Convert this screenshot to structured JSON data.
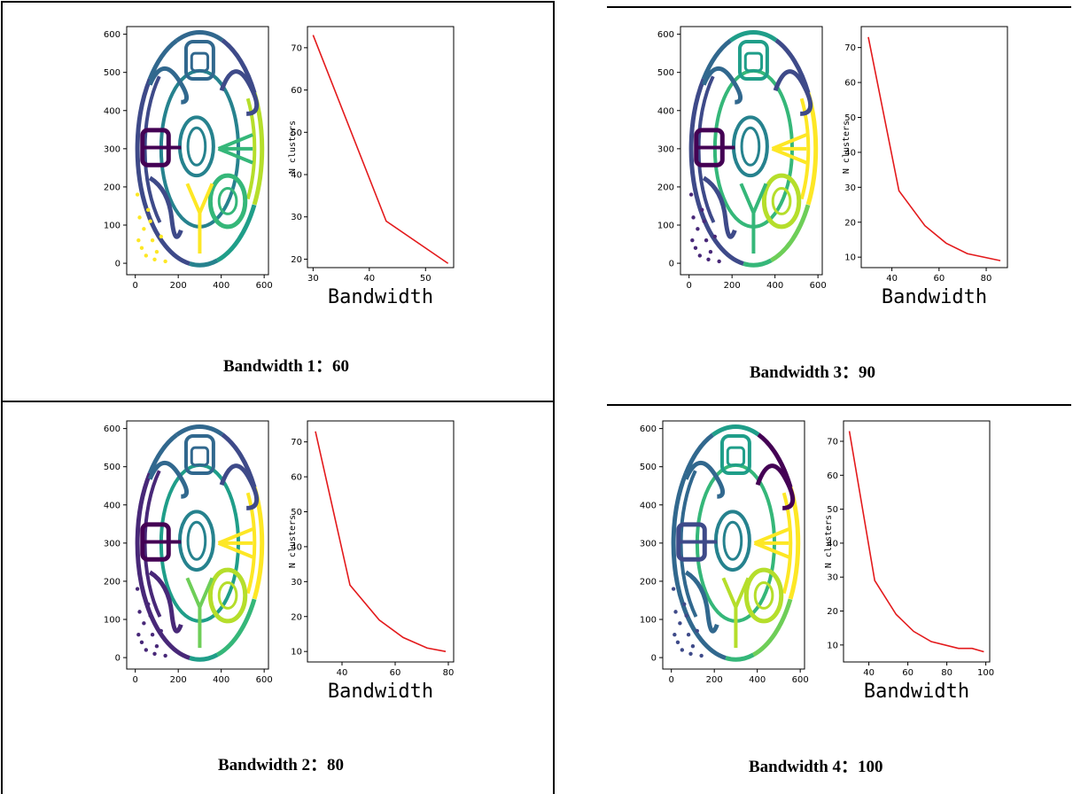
{
  "panels": [
    {
      "caption": "Bandwidth 1：60",
      "clusters": "c1",
      "chart": {
        "x": [
          30,
          43,
          54
        ],
        "y": [
          73,
          29,
          19
        ],
        "xlim": [
          29,
          55
        ],
        "xticks": [
          30,
          40,
          50
        ],
        "ylim": [
          18,
          75
        ],
        "yticks": [
          20,
          30,
          40,
          50,
          60,
          70
        ],
        "ylabel": "N clusters",
        "xlabel": "Bandwidth"
      }
    },
    {
      "caption": "Bandwidth 3：90",
      "clusters": "c3",
      "chart": {
        "x": [
          30,
          43,
          54,
          63,
          72,
          86
        ],
        "y": [
          73,
          29,
          19,
          14,
          11,
          9
        ],
        "xlim": [
          27,
          89
        ],
        "xticks": [
          40,
          60,
          80
        ],
        "ylim": [
          7,
          76
        ],
        "yticks": [
          10,
          20,
          30,
          40,
          50,
          60,
          70
        ],
        "ylabel": "N clusters",
        "xlabel": "Bandwidth"
      }
    },
    {
      "caption": "Bandwidth 2：80",
      "clusters": "c2",
      "chart": {
        "x": [
          30,
          43,
          54,
          63,
          72,
          79
        ],
        "y": [
          73,
          29,
          19,
          14,
          11,
          10
        ],
        "xlim": [
          27,
          82
        ],
        "xticks": [
          40,
          60,
          80
        ],
        "ylim": [
          7,
          76
        ],
        "yticks": [
          10,
          20,
          30,
          40,
          50,
          60,
          70
        ],
        "ylabel": "N clusters",
        "xlabel": "Bandwidth"
      }
    },
    {
      "caption": "Bandwidth 4：100",
      "clusters": "c4",
      "chart": {
        "x": [
          30,
          43,
          54,
          63,
          72,
          86,
          93,
          99
        ],
        "y": [
          73,
          29,
          19,
          14,
          11,
          9,
          9,
          8
        ],
        "xlim": [
          27,
          102
        ],
        "xticks": [
          40,
          60,
          80,
          100
        ],
        "ylim": [
          5,
          76
        ],
        "yticks": [
          10,
          20,
          30,
          40,
          50,
          60,
          70
        ],
        "ylabel": "N clusters",
        "xlabel": "Bandwidth"
      }
    }
  ],
  "scatter_axes": {
    "xticks": [
      0,
      200,
      400,
      600
    ],
    "yticks": [
      0,
      100,
      200,
      300,
      400,
      500,
      600
    ],
    "xlim": [
      -40,
      620
    ],
    "ylim": [
      -30,
      620
    ]
  },
  "palette": {
    "dark_purple": "#440154",
    "purple": "#482878",
    "indigo": "#3e4a89",
    "blue": "#31688e",
    "teal": "#26828e",
    "green_teal": "#1f9e89",
    "green": "#35b779",
    "light_green": "#6ece58",
    "yellow_green": "#b5de2b",
    "yellow": "#fde725",
    "line": "#e31a1c"
  }
}
